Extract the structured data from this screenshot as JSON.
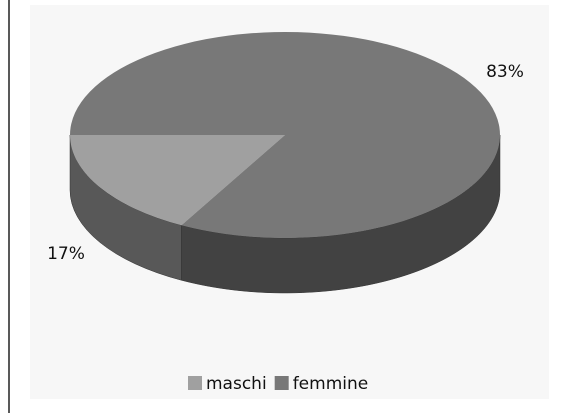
{
  "chart_data": {
    "type": "pie",
    "categories": [
      "maschi",
      "femmine"
    ],
    "values": [
      17,
      83
    ],
    "value_labels": [
      "17%",
      "83%"
    ],
    "colors": [
      "#a0a0a0",
      "#787878"
    ],
    "legend": "bottom"
  }
}
